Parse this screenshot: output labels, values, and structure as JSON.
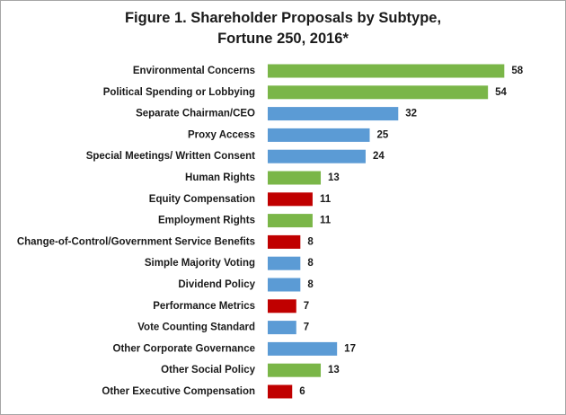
{
  "chart_data": {
    "type": "bar",
    "orientation": "horizontal",
    "title_line1": "Figure 1. Shareholder Proposals by Subtype,",
    "title_line2": "Fortune 250, 2016*",
    "xlabel": "",
    "ylabel": "",
    "xlim": [
      0,
      60
    ],
    "grid": false,
    "legend": "none",
    "colors": {
      "environmental_social": "#7ab648",
      "governance": "#5b9bd5",
      "compensation": "#c00000"
    },
    "bars": [
      {
        "label": "Environmental Concerns",
        "value": 58,
        "group": "environmental_social"
      },
      {
        "label": "Political Spending or Lobbying",
        "value": 54,
        "group": "environmental_social"
      },
      {
        "label": "Separate Chairman/CEO",
        "value": 32,
        "group": "governance"
      },
      {
        "label": "Proxy Access",
        "value": 25,
        "group": "governance"
      },
      {
        "label": "Special Meetings/ Written Consent",
        "value": 24,
        "group": "governance"
      },
      {
        "label": "Human Rights",
        "value": 13,
        "group": "environmental_social"
      },
      {
        "label": "Equity Compensation",
        "value": 11,
        "group": "compensation"
      },
      {
        "label": "Employment Rights",
        "value": 11,
        "group": "environmental_social"
      },
      {
        "label": "Change-of-Control/Government Service Benefits",
        "value": 8,
        "group": "compensation"
      },
      {
        "label": "Simple Majority Voting",
        "value": 8,
        "group": "governance"
      },
      {
        "label": "Dividend Policy",
        "value": 8,
        "group": "governance"
      },
      {
        "label": "Performance Metrics",
        "value": 7,
        "group": "compensation"
      },
      {
        "label": "Vote Counting Standard",
        "value": 7,
        "group": "governance"
      },
      {
        "label": "Other Corporate Governance",
        "value": 17,
        "group": "governance"
      },
      {
        "label": "Other Social Policy",
        "value": 13,
        "group": "environmental_social"
      },
      {
        "label": "Other Executive Compensation",
        "value": 6,
        "group": "compensation"
      }
    ]
  }
}
